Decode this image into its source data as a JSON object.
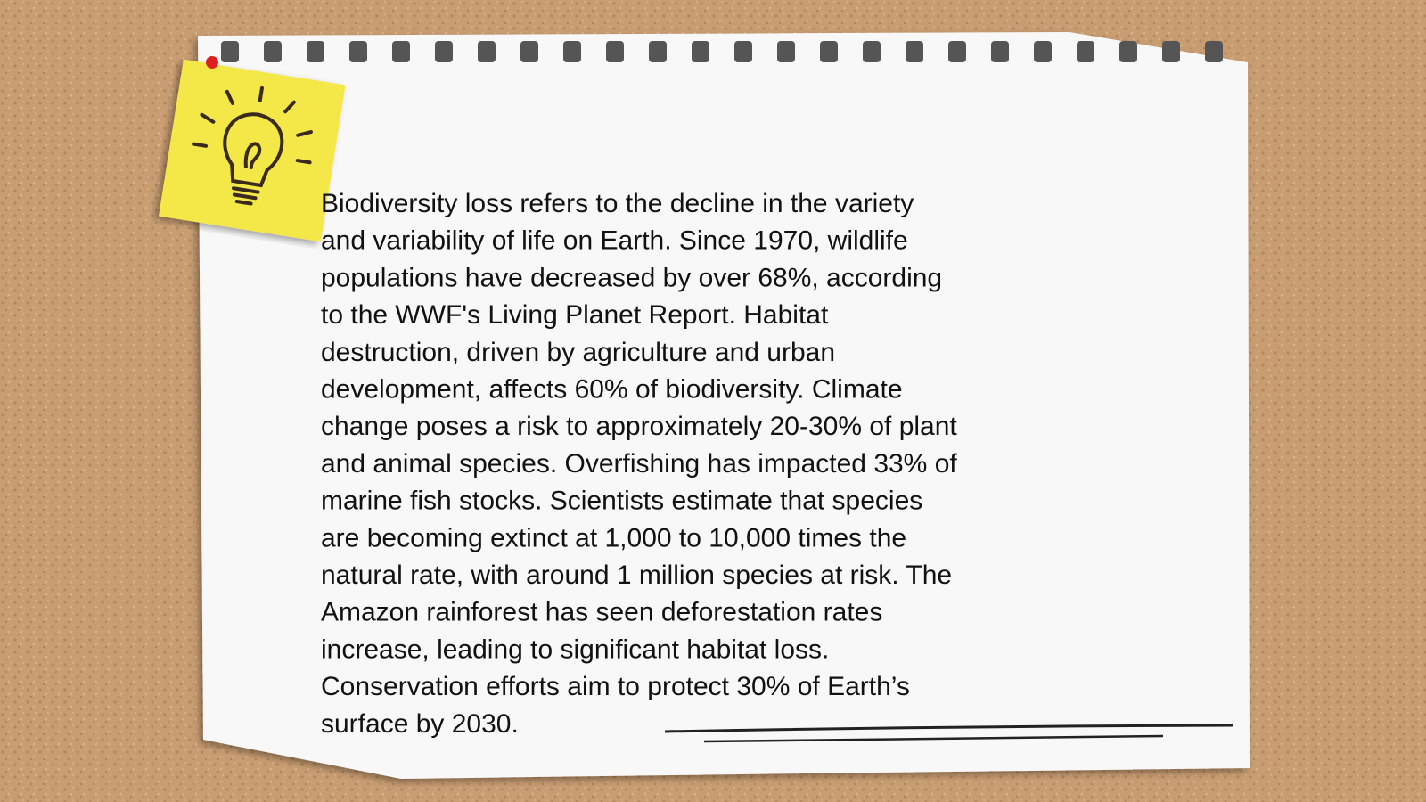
{
  "note": {
    "lines": [
      "Biodiversity loss refers to the decline in the variety",
      "and variability of life on Earth. Since 1970, wildlife",
      "populations have decreased by over 68%, according",
      "to the WWF's Living Planet Report. Habitat",
      "destruction, driven by agriculture and urban",
      "development, affects 60% of biodiversity. Climate",
      "change poses a risk to approximately 20-30% of plant",
      "and animal species. Overfishing has impacted 33% of",
      "marine fish stocks. Scientists estimate that species",
      "are becoming extinct at 1,000 to 10,000 times the",
      "natural rate, with around 1 million species at risk. The",
      "Amazon rainforest has seen deforestation rates",
      "increase, leading to significant habitat loss.",
      "Conservation efforts aim to protect 30% of Earth’s",
      "surface by 2030."
    ]
  }
}
